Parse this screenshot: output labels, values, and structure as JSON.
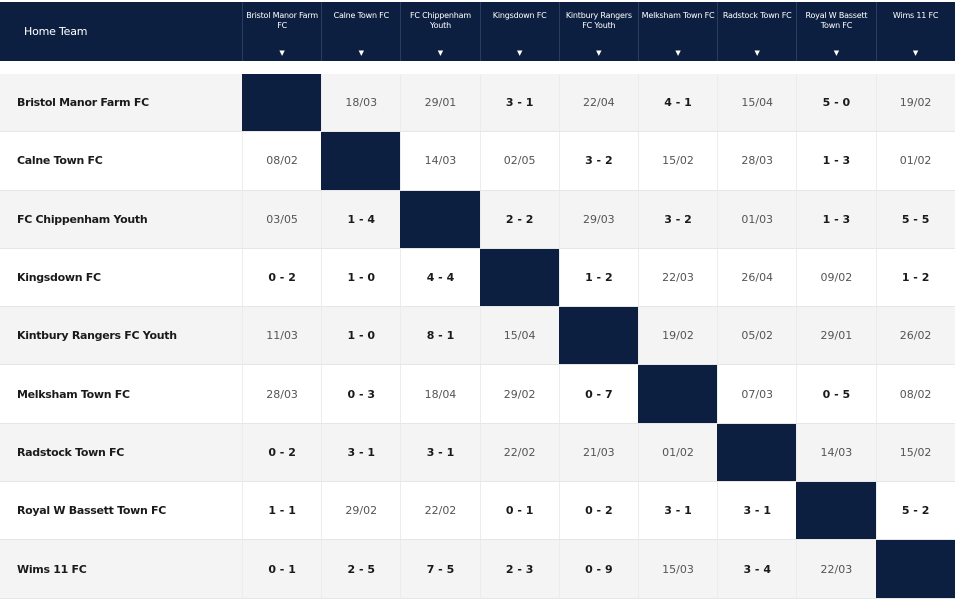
{
  "header": {
    "home_label": "Home Team",
    "sort_glyph": "▼",
    "away_teams": [
      "Bristol Manor Farm FC",
      "Calne Town FC",
      "FC Chippenham Youth",
      "Kingsdown FC",
      "Kintbury Rangers FC Youth",
      "Melksham Town FC",
      "Radstock Town FC",
      "Royal W Bassett Town FC",
      "Wims 11 FC"
    ]
  },
  "colors": {
    "header_bg": "#0d1f40",
    "self_cell": "#0d1f40",
    "alt_row": "#f4f4f4"
  },
  "rows": [
    {
      "team": "Bristol Manor Farm FC",
      "cells": [
        "",
        "18/03",
        "29/01",
        "3 - 1",
        "22/04",
        "4 - 1",
        "15/04",
        "5 - 0",
        "19/02"
      ]
    },
    {
      "team": "Calne Town FC",
      "cells": [
        "08/02",
        "",
        "14/03",
        "02/05",
        "3 - 2",
        "15/02",
        "28/03",
        "1 - 3",
        "01/02"
      ]
    },
    {
      "team": "FC Chippenham Youth",
      "cells": [
        "03/05",
        "1 - 4",
        "",
        "2 - 2",
        "29/03",
        "3 - 2",
        "01/03",
        "1 - 3",
        "5 - 5"
      ]
    },
    {
      "team": "Kingsdown FC",
      "cells": [
        "0 - 2",
        "1 - 0",
        "4 - 4",
        "",
        "1 - 2",
        "22/03",
        "26/04",
        "09/02",
        "1 - 2"
      ]
    },
    {
      "team": "Kintbury Rangers FC Youth",
      "cells": [
        "11/03",
        "1 - 0",
        "8 - 1",
        "15/04",
        "",
        "19/02",
        "05/02",
        "29/01",
        "26/02"
      ]
    },
    {
      "team": "Melksham Town FC",
      "cells": [
        "28/03",
        "0 - 3",
        "18/04",
        "29/02",
        "0 - 7",
        "",
        "07/03",
        "0 - 5",
        "08/02"
      ]
    },
    {
      "team": "Radstock Town FC",
      "cells": [
        "0 - 2",
        "3 - 1",
        "3 - 1",
        "22/02",
        "21/03",
        "01/02",
        "",
        "14/03",
        "15/02"
      ]
    },
    {
      "team": "Royal W Bassett Town FC",
      "cells": [
        "1 - 1",
        "29/02",
        "22/02",
        "0 - 1",
        "0 - 2",
        "3 - 1",
        "3 - 1",
        "",
        "5 - 2"
      ]
    },
    {
      "team": "Wims 11 FC",
      "cells": [
        "0 - 1",
        "2 - 5",
        "7 - 5",
        "2 - 3",
        "0 - 9",
        "15/03",
        "3 - 4",
        "22/03",
        ""
      ]
    }
  ]
}
